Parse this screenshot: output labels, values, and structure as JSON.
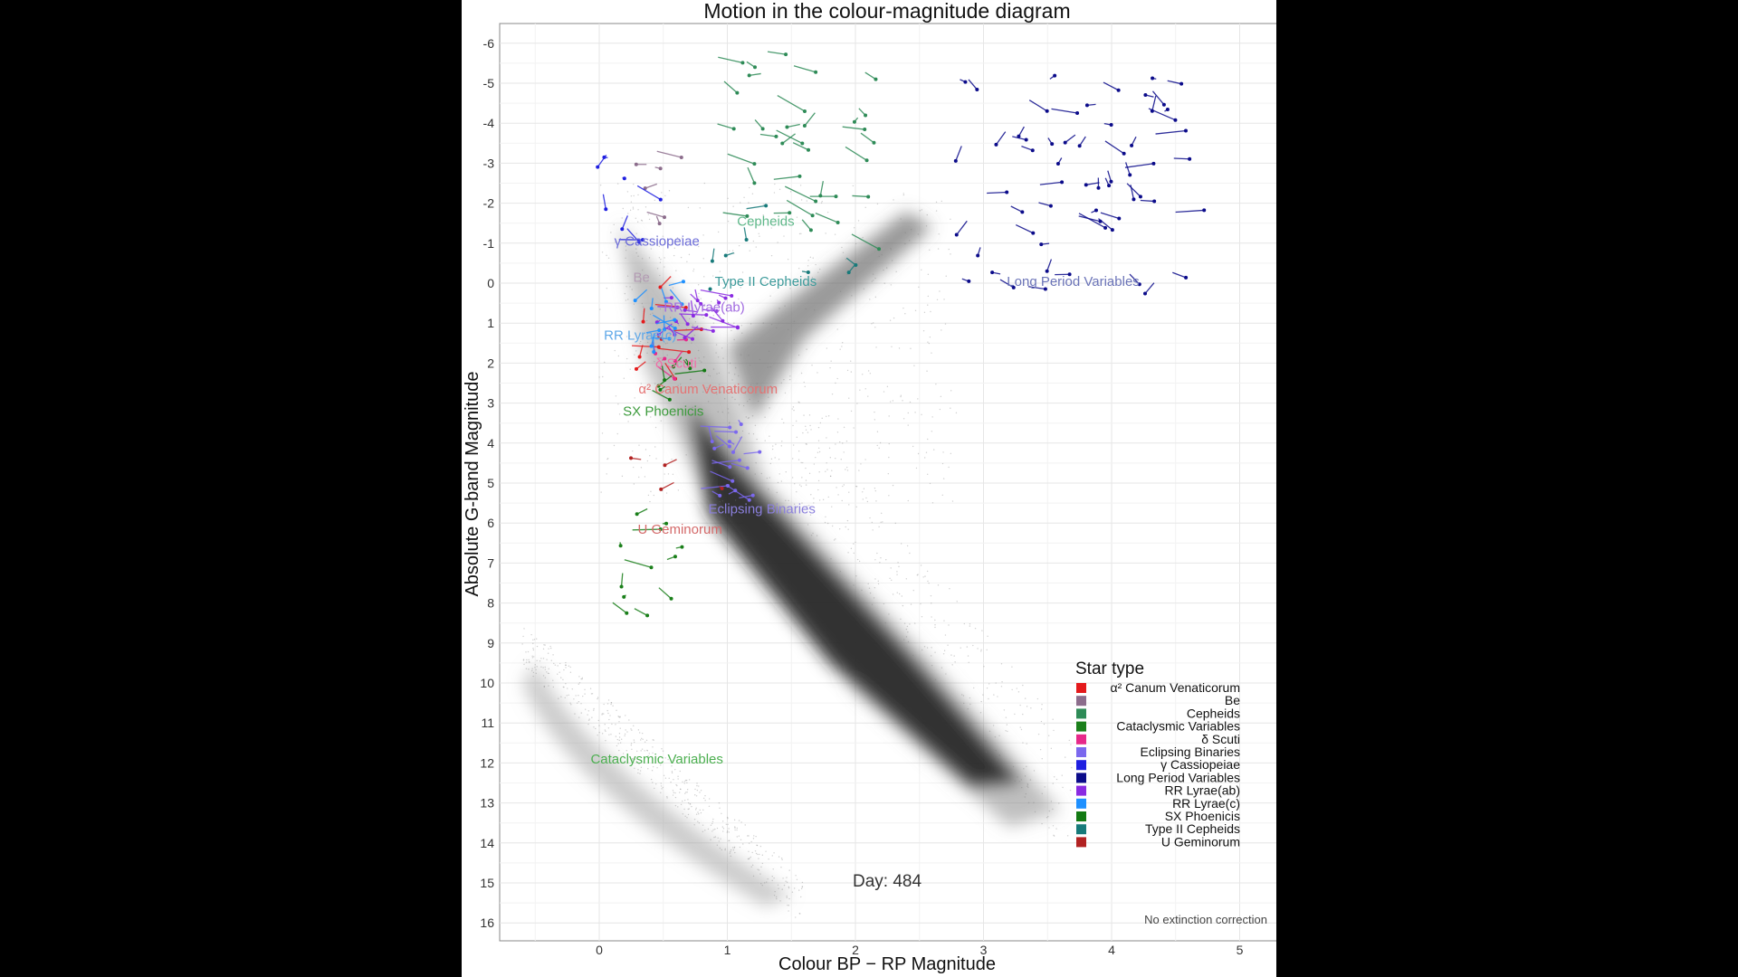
{
  "chart_data": {
    "type": "scatter",
    "title": "Motion in the colour-magnitude diagram",
    "xlabel": "Colour BP − RP Magnitude",
    "ylabel": "Absolute G-band Magnitude",
    "xlim": [
      -0.75,
      5.3
    ],
    "ylim": [
      -6.5,
      16.5
    ],
    "y_inverted": true,
    "x_ticks": [
      "0",
      "1",
      "2",
      "3",
      "4",
      "5"
    ],
    "y_ticks": [
      "-6",
      "-5",
      "-4",
      "-3",
      "-2",
      "-1",
      "0",
      "1",
      "2",
      "3",
      "4",
      "5",
      "6",
      "7",
      "8",
      "9",
      "10",
      "11",
      "12",
      "13",
      "14",
      "15",
      "16"
    ],
    "grid": true,
    "legend_position": "bottom-right",
    "legend_title": "Star type",
    "day_label": "Day: 484",
    "footnote": "No extinction correction",
    "background_population": "Gaia stars (grey density)",
    "series": [
      {
        "name": "α² Canum Venaticorum",
        "color": "#e41a1c",
        "label": "α² Canum Venaticorum",
        "label_pos": [
          0.85,
          2.65
        ],
        "label_color": "#e57373"
      },
      {
        "name": "Be",
        "color": "#8c6d8c",
        "label": "Be",
        "label_pos": [
          0.33,
          -0.15
        ],
        "label_color": "#b39bb3"
      },
      {
        "name": "Cepheids",
        "color": "#2e8b57",
        "label": "Cepheids",
        "label_pos": [
          1.3,
          -1.55
        ],
        "label_color": "#5fb88a"
      },
      {
        "name": "Cataclysmic Variables",
        "color": "#1a7f1a",
        "label": "Cataclysmic Variables",
        "label_pos": [
          0.45,
          11.9
        ],
        "label_color": "#4caf50"
      },
      {
        "name": "δ Scuti",
        "color": "#e7298a",
        "label": "δ Scuti",
        "label_pos": [
          0.6,
          2.0
        ],
        "label_color": "#f06fa8"
      },
      {
        "name": "Eclipsing Binaries",
        "color": "#7b68ee",
        "label": "Eclipsing Binaries",
        "label_pos": [
          1.27,
          5.65
        ],
        "label_color": "#8a7fdc"
      },
      {
        "name": "γ Cassiopeiae",
        "color": "#1f1fe0",
        "label": "γ Cassiopeiae",
        "label_pos": [
          0.45,
          -1.05
        ],
        "label_color": "#6b6bd8"
      },
      {
        "name": "Long Period Variables",
        "color": "#0b0b8a",
        "label": "Long Period Variables",
        "label_pos": [
          3.7,
          -0.05
        ],
        "label_color": "#6b74b8"
      },
      {
        "name": "RR Lyrae(ab)",
        "color": "#8a2be2",
        "label": "RR Lyrae(ab)",
        "label_pos": [
          0.82,
          0.6
        ],
        "label_color": "#a26be0"
      },
      {
        "name": "RR Lyrae(c)",
        "color": "#1e90ff",
        "label": "RR Lyrae(c)",
        "label_pos": [
          0.32,
          1.3
        ],
        "label_color": "#5fa8e8"
      },
      {
        "name": "SX Phoenicis",
        "color": "#137a13",
        "label": "SX Phoenicis",
        "label_pos": [
          0.5,
          3.2
        ],
        "label_color": "#3d9b3d"
      },
      {
        "name": "Type II Cepheids",
        "color": "#177a7a",
        "label": "Type II Cepheids",
        "label_pos": [
          1.3,
          -0.05
        ],
        "label_color": "#3d9b9b"
      },
      {
        "name": "U Geminorum",
        "color": "#b22222",
        "label": "U Geminorum",
        "label_pos": [
          0.63,
          6.15
        ],
        "label_color": "#d46a6a"
      }
    ]
  }
}
